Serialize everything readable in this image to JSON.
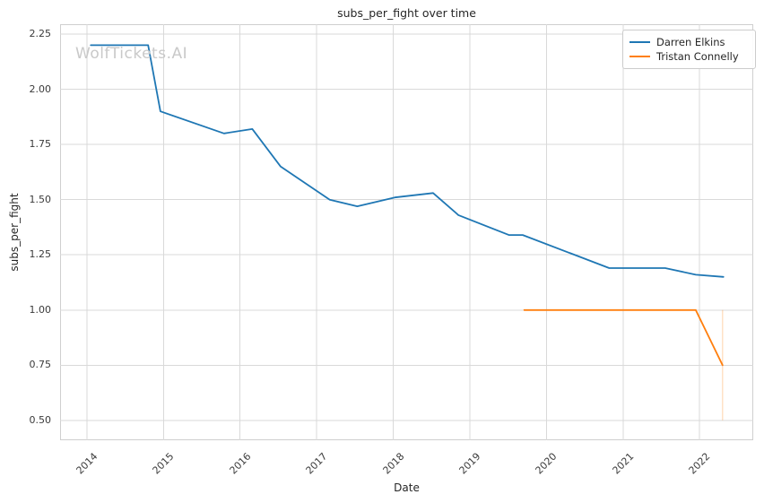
{
  "title": "subs_per_fight over time",
  "watermark": "WolfTickets.AI",
  "chart_data": {
    "type": "line",
    "title": "subs_per_fight over time",
    "xlabel": "Date",
    "ylabel": "subs_per_fight",
    "xlim": [
      2013.65,
      2022.7
    ],
    "ylim": [
      0.41,
      2.295
    ],
    "grid": true,
    "legend_position": "upper right",
    "x_ticks": [
      2014,
      2015,
      2016,
      2017,
      2018,
      2019,
      2020,
      2021,
      2022
    ],
    "x_tick_labels": [
      "2014",
      "2015",
      "2016",
      "2017",
      "2018",
      "2019",
      "2020",
      "2021",
      "2022"
    ],
    "y_ticks": [
      0.5,
      0.75,
      1.0,
      1.25,
      1.5,
      1.75,
      2.0,
      2.25
    ],
    "y_tick_labels": [
      "0.50",
      "0.75",
      "1.00",
      "1.25",
      "1.50",
      "1.75",
      "2.00",
      "2.25"
    ],
    "grid_color": "#d9d9d9",
    "series": [
      {
        "name": "Darren Elkins",
        "color": "#1f77b4",
        "points": [
          [
            2014.05,
            2.2
          ],
          [
            2014.8,
            2.2
          ],
          [
            2014.96,
            1.9
          ],
          [
            2015.79,
            1.8
          ],
          [
            2016.16,
            1.82
          ],
          [
            2016.53,
            1.65
          ],
          [
            2017.17,
            1.5
          ],
          [
            2017.53,
            1.47
          ],
          [
            2018.02,
            1.51
          ],
          [
            2018.52,
            1.53
          ],
          [
            2018.85,
            1.43
          ],
          [
            2019.51,
            1.34
          ],
          [
            2019.69,
            1.34
          ],
          [
            2020.82,
            1.19
          ],
          [
            2021.55,
            1.19
          ],
          [
            2021.95,
            1.16
          ],
          [
            2022.31,
            1.15
          ]
        ]
      },
      {
        "name": "Tristan Connelly",
        "color": "#ff7f0e",
        "points": [
          [
            2019.71,
            1.0
          ],
          [
            2021.95,
            1.0
          ],
          [
            2022.3,
            0.75
          ]
        ]
      }
    ],
    "annotations": [
      {
        "type": "vline-segment",
        "x": 2022.3,
        "y0": 0.5,
        "y1": 1.0,
        "color": "#ff7f0e",
        "opacity": 0.35
      }
    ]
  }
}
